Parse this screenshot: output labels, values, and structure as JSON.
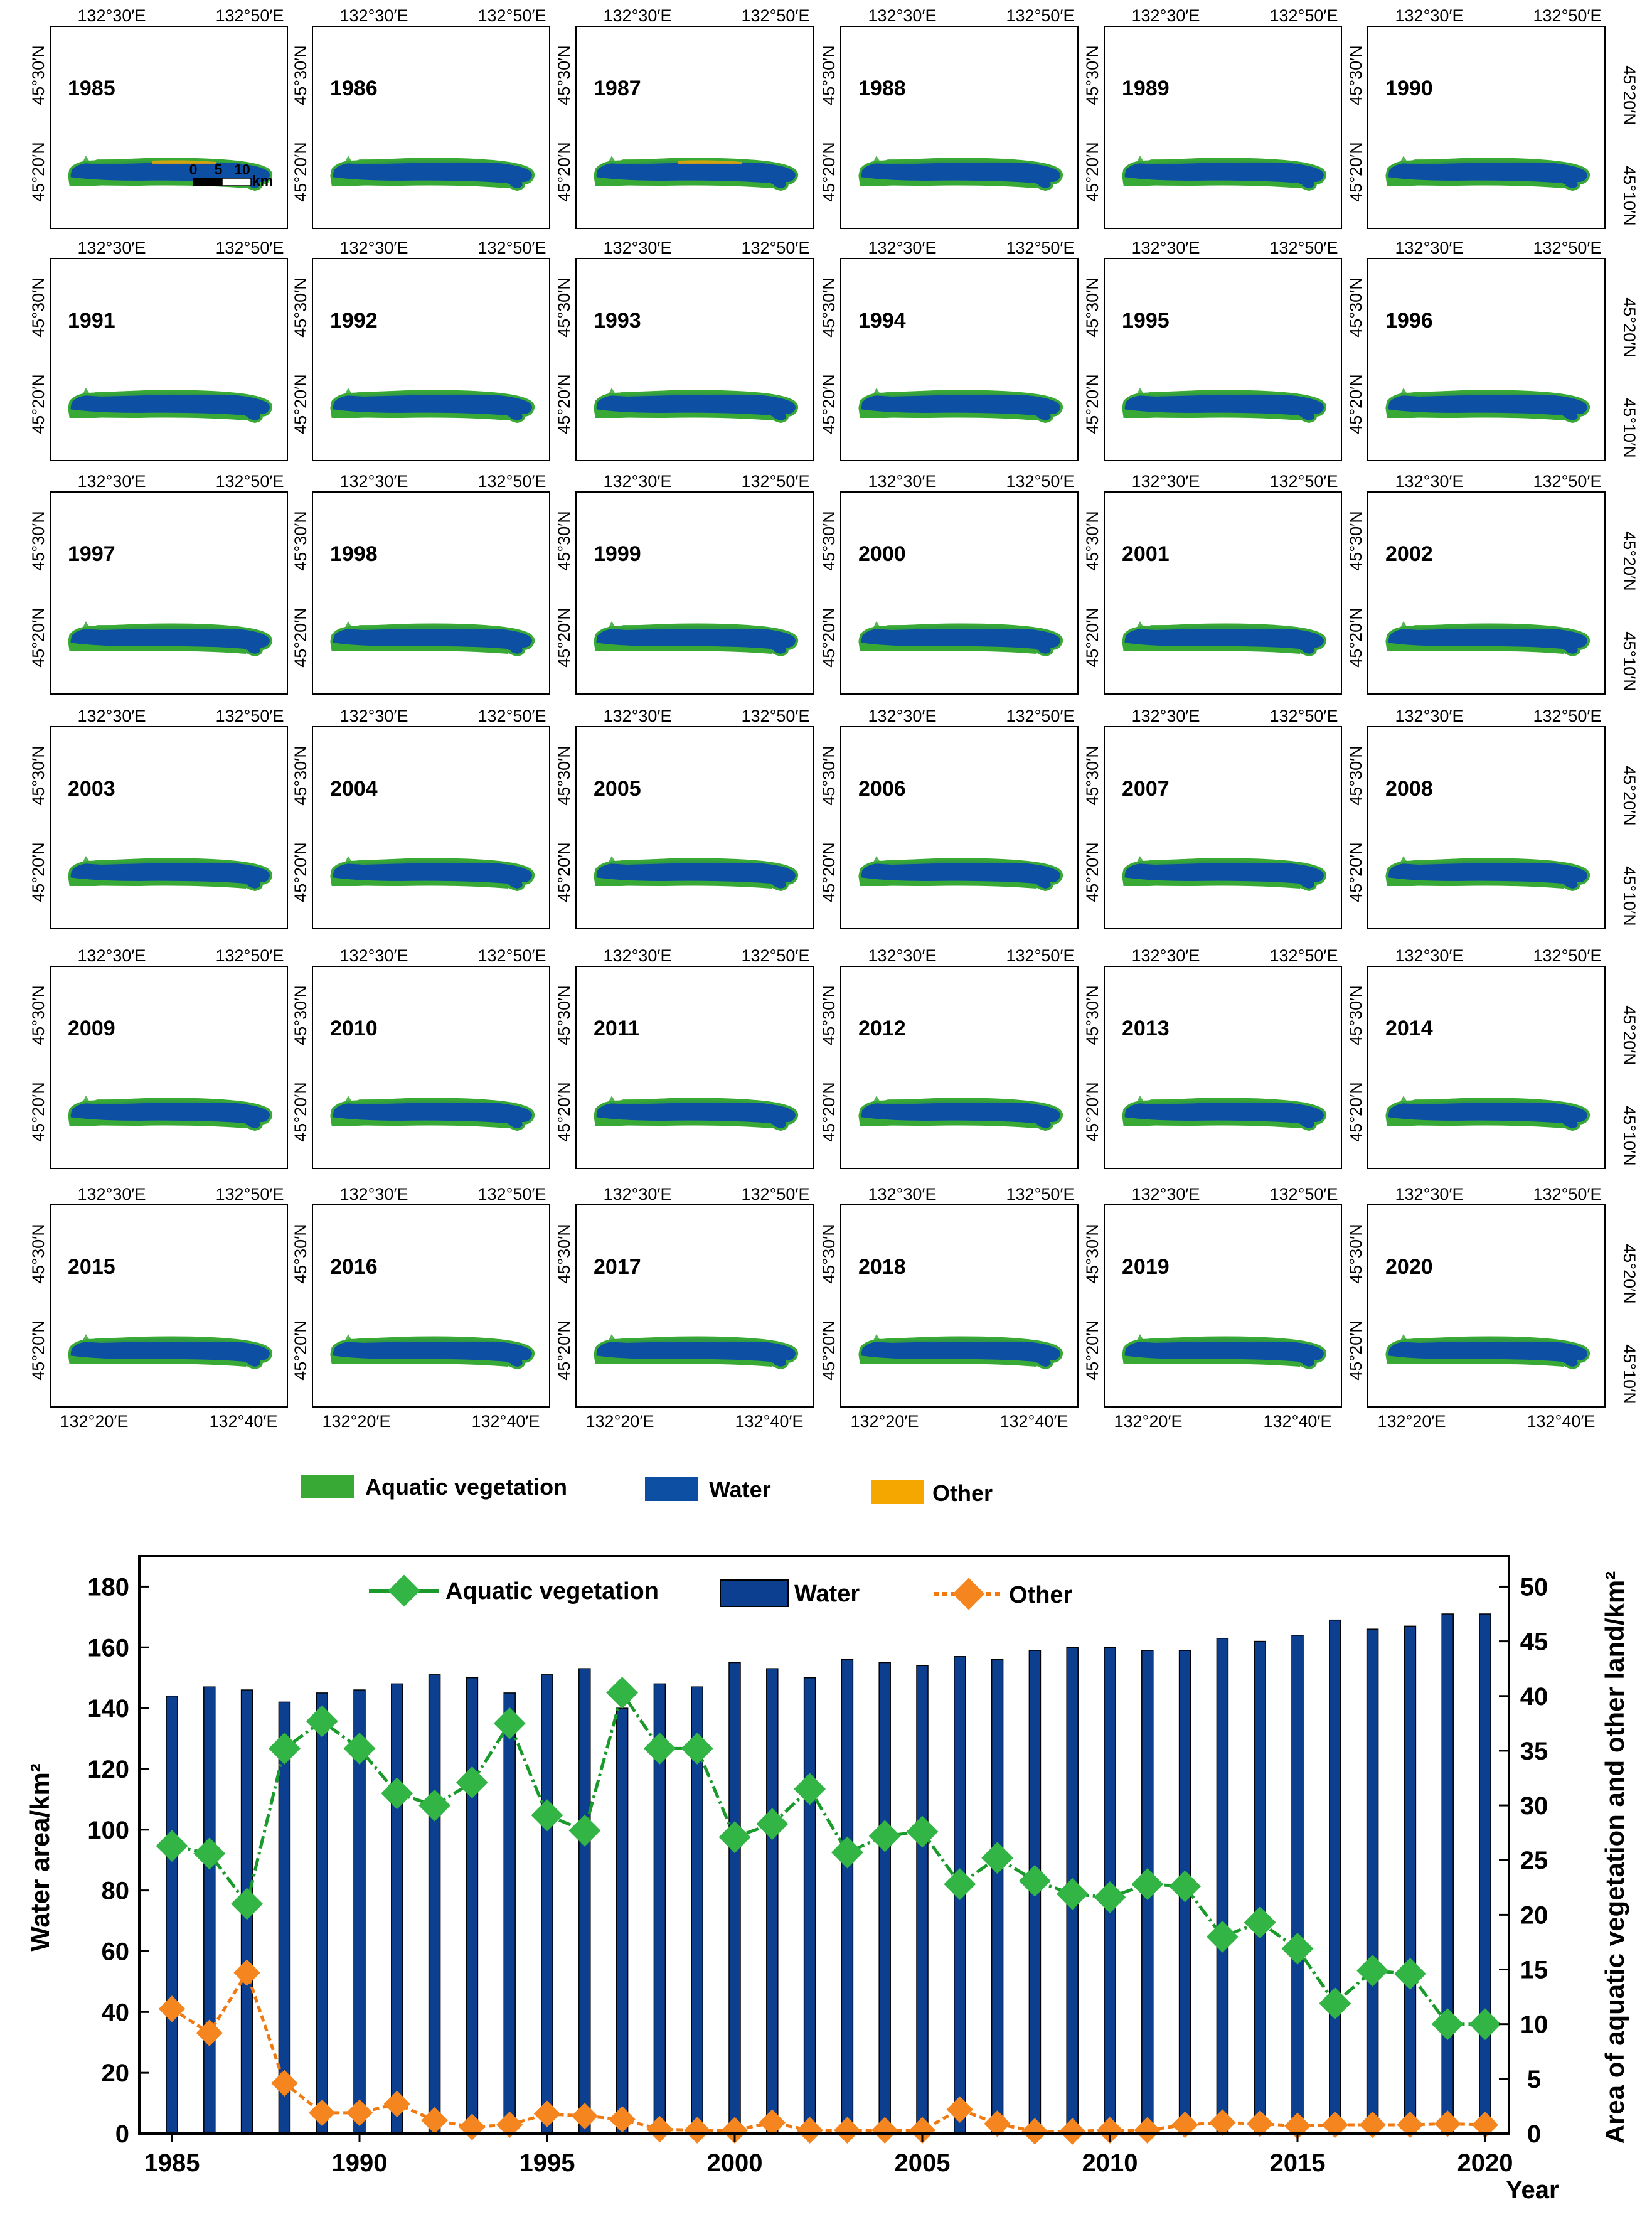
{
  "colors": {
    "vegetation": "#39a935",
    "water": "#0d4fa3",
    "other": "#f5a700",
    "water_bar": "#0c3f8f",
    "veg_line": "#1b9a2c",
    "veg_marker": "#33b545",
    "other_line": "#f07a10",
    "other_marker": "#f5861f"
  },
  "map_panels": {
    "years": [
      "1985",
      "1986",
      "1987",
      "1988",
      "1989",
      "1990",
      "1991",
      "1992",
      "1993",
      "1994",
      "1995",
      "1996",
      "1997",
      "1998",
      "1999",
      "2000",
      "2001",
      "2002",
      "2003",
      "2004",
      "2005",
      "2006",
      "2007",
      "2008",
      "2009",
      "2010",
      "2011",
      "2012",
      "2013",
      "2014",
      "2015",
      "2016",
      "2017",
      "2018",
      "2019",
      "2020"
    ],
    "top_lon_left": "132°30′E",
    "top_lon_right": "132°50′E",
    "bottom_lon_left": "132°20′E",
    "bottom_lon_right": "132°40′E",
    "left_lat_upper": "45°30′N",
    "left_lat_lower": "45°20′N",
    "right_lat_upper": "45°20′N",
    "right_lat_lower": "45°10′N",
    "scale_ticks": [
      "0",
      "5",
      "10"
    ],
    "scale_unit": "km"
  },
  "map_legend": {
    "vegetation": "Aquatic vegetation",
    "water": "Water",
    "other": "Other"
  },
  "chart_data": {
    "type": "bar+line",
    "years": [
      1985,
      1986,
      1987,
      1988,
      1989,
      1990,
      1991,
      1992,
      1993,
      1994,
      1995,
      1996,
      1997,
      1998,
      1999,
      2000,
      2001,
      2002,
      2003,
      2004,
      2005,
      2006,
      2007,
      2008,
      2009,
      2010,
      2011,
      2012,
      2013,
      2014,
      2015,
      2016,
      2017,
      2018,
      2019,
      2020
    ],
    "series": [
      {
        "name": "Water",
        "axis": "left",
        "kind": "bar",
        "values": [
          144,
          147,
          146,
          142,
          145,
          146,
          148,
          151,
          150,
          145,
          151,
          153,
          140,
          148,
          147,
          155,
          153,
          150,
          156,
          155,
          154,
          157,
          156,
          159,
          160,
          160,
          159,
          159,
          163,
          162,
          164,
          169,
          166,
          167,
          171,
          171
        ]
      },
      {
        "name": "Aquatic vegetation",
        "axis": "right",
        "kind": "line",
        "values": [
          26.3,
          25.6,
          21.0,
          35.2,
          37.7,
          35.2,
          31.1,
          30.0,
          32.1,
          37.5,
          29.1,
          27.7,
          40.3,
          35.2,
          35.2,
          27.1,
          28.3,
          31.5,
          25.7,
          27.2,
          27.6,
          22.8,
          25.2,
          23.1,
          21.9,
          21.6,
          22.8,
          22.6,
          18.0,
          19.3,
          16.9,
          11.9,
          14.9,
          14.6,
          10.0,
          10.0
        ]
      },
      {
        "name": "Other",
        "axis": "right",
        "kind": "line",
        "values": [
          11.4,
          9.2,
          14.7,
          4.6,
          1.9,
          1.9,
          2.7,
          1.2,
          0.6,
          0.8,
          1.8,
          1.6,
          1.3,
          0.4,
          0.3,
          0.3,
          1.0,
          0.3,
          0.3,
          0.3,
          0.3,
          2.2,
          0.9,
          0.2,
          0.2,
          0.3,
          0.3,
          0.8,
          1.0,
          0.9,
          0.7,
          0.8,
          0.8,
          0.8,
          0.9,
          0.8
        ]
      }
    ],
    "ylabel": "Water area/km²",
    "y2label": "Area of aquatic vegetation and other land/km²",
    "xlabel": "Year",
    "ylim": [
      0,
      190
    ],
    "y2lim": [
      0,
      52.78
    ],
    "yticks": [
      "0",
      "20",
      "40",
      "60",
      "80",
      "100",
      "120",
      "140",
      "160",
      "180"
    ],
    "y2ticks": [
      "0",
      "5",
      "10",
      "15",
      "20",
      "25",
      "30",
      "35",
      "40",
      "45",
      "50"
    ],
    "xticks": [
      "1985",
      "1990",
      "1995",
      "2000",
      "2005",
      "2010",
      "2015",
      "2020"
    ],
    "legend": [
      "Aquatic vegetation",
      "Water",
      "Other"
    ],
    "legend_position": "top"
  }
}
